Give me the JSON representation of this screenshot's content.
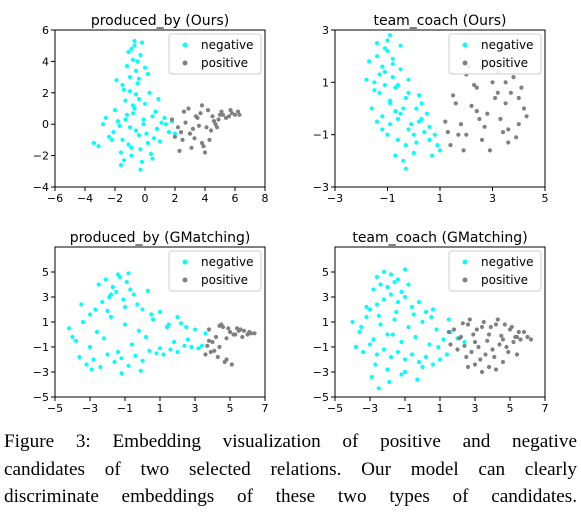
{
  "colors": {
    "negative": "#00ffff",
    "positive": "#808080",
    "axis": "#000000"
  },
  "legend": {
    "negative": "negative",
    "positive": "positive"
  },
  "chart_data": [
    {
      "type": "scatter",
      "title": "produced_by (Ours)",
      "xlim": [
        -6,
        8
      ],
      "ylim": [
        -4,
        6
      ],
      "xticks": [
        "−6",
        "−4",
        "−2",
        "0",
        "2",
        "4",
        "6",
        "8"
      ],
      "yticks": [
        "−4",
        "−2",
        "0",
        "2",
        "4",
        "6"
      ],
      "xtick_values": [
        -6,
        -4,
        -2,
        0,
        2,
        4,
        6,
        8
      ],
      "ytick_values": [
        -4,
        -2,
        0,
        2,
        4,
        6
      ],
      "legend_position": "top-right",
      "series": [
        {
          "name": "negative",
          "color": "#00ffff",
          "x": [
            -2.1,
            -1.8,
            -1.5,
            -1.2,
            -1.0,
            -0.7,
            -0.4,
            -0.1,
            0.2,
            0.5,
            0.8,
            1.1,
            -2.4,
            -2.8,
            -3.1,
            -1.6,
            -0.9,
            -0.3,
            0.4,
            1.0,
            1.6,
            -1.3,
            -0.6,
            0.0,
            0.7,
            -2.0,
            -1.1,
            -0.2,
            0.6,
            1.3,
            -1.7,
            -0.8,
            0.1,
            -1.4,
            -0.5,
            0.3,
            -1.0,
            -0.6,
            -0.4,
            -1.2,
            -0.8,
            -0.3,
            0.0,
            -0.9,
            -1.5,
            -0.2,
            -0.7,
            -1.1,
            0.2,
            -0.5,
            -1.0,
            -0.4,
            -0.8,
            -1.3,
            -0.1,
            -0.6,
            -0.9,
            -1.6,
            0.5,
            -2.2,
            1.4,
            2.0,
            -2.6,
            -3.4,
            1.8,
            -1.9,
            -0.3,
            0.9,
            -1.4,
            -0.7
          ],
          "y": [
            -0.5,
            0.2,
            -1.0,
            0.6,
            -0.2,
            1.0,
            -0.7,
            0.3,
            -1.2,
            0.5,
            -0.3,
            0.1,
            -0.8,
            0.0,
            -1.4,
            -1.8,
            -2.0,
            -1.6,
            -1.9,
            -1.1,
            -0.5,
            1.5,
            1.9,
            1.3,
            0.8,
            0.9,
            -1.3,
            -2.4,
            -0.9,
            0.4,
            -0.1,
            0.7,
            -0.6,
            2.2,
            2.6,
            2.0,
            3.0,
            3.4,
            2.9,
            3.7,
            4.1,
            4.4,
            3.6,
            4.8,
            2.5,
            5.2,
            5.0,
            4.6,
            3.2,
            4.0,
            2.1,
            1.6,
            1.2,
            0.3,
            0.0,
            -0.4,
            -1.5,
            -2.6,
            -2.2,
            -1.0,
            0.0,
            -0.6,
            0.4,
            -1.2,
            0.2,
            2.8,
            -2.9,
            1.6,
            -2.3,
            5.3
          ]
        },
        {
          "name": "positive",
          "color": "#808080",
          "x": [
            1.8,
            2.2,
            2.6,
            3.0,
            3.4,
            3.8,
            4.2,
            4.6,
            5.0,
            5.4,
            5.8,
            6.2,
            2.5,
            3.1,
            3.6,
            4.0,
            4.4,
            4.9,
            2.9,
            3.3,
            3.9,
            4.5,
            2.3,
            2.7,
            3.5,
            4.1,
            4.7,
            5.2,
            5.6,
            6.0,
            2.0,
            3.8,
            4.3,
            3.2,
            2.4,
            5.1,
            5.7,
            3.7,
            4.8,
            6.3
          ],
          "y": [
            0.3,
            -0.2,
            0.8,
            -0.6,
            0.5,
            -1.2,
            0.9,
            0.2,
            0.6,
            0.4,
            0.7,
            0.8,
            -1.0,
            -1.5,
            -0.1,
            -1.8,
            -0.4,
            0.3,
            1.0,
            -0.9,
            -1.4,
            0.5,
            -1.7,
            0.1,
            0.4,
            -0.2,
            0.0,
            0.6,
            0.5,
            0.6,
            -0.8,
            1.2,
            -1.0,
            -0.3,
            -0.5,
            0.8,
            0.9,
            0.7,
            -0.2,
            0.6
          ]
        }
      ]
    },
    {
      "type": "scatter",
      "title": "team_coach (Ours)",
      "xlim": [
        -3,
        5
      ],
      "ylim": [
        -3,
        3
      ],
      "xticks": [
        "−3",
        "−1",
        "1",
        "3",
        "5"
      ],
      "yticks": [
        "−3",
        "−1",
        "1",
        "3"
      ],
      "xtick_values": [
        -3,
        -1,
        1,
        3,
        5
      ],
      "ytick_values": [
        -3,
        -1,
        1,
        3
      ],
      "legend_position": "top-right",
      "series": [
        {
          "name": "negative",
          "color": "#00ffff",
          "x": [
            -1.5,
            -1.3,
            -1.1,
            -0.9,
            -0.7,
            -0.5,
            -0.3,
            -0.1,
            0.1,
            0.3,
            -1.7,
            -1.4,
            -1.2,
            -1.0,
            -0.8,
            -0.6,
            -0.4,
            -0.2,
            0.0,
            0.2,
            0.4,
            0.6,
            0.8,
            1.0,
            -1.6,
            -1.2,
            -0.9,
            -0.6,
            -0.3,
            0.0,
            -1.4,
            -1.1,
            -0.8,
            -0.5,
            -0.2,
            0.2,
            0.5,
            -1.0,
            -0.7,
            -0.4,
            -1.3,
            -0.9,
            -0.6,
            -1.5,
            -1.1,
            -0.8,
            0.1,
            0.6,
            0.9,
            -0.2,
            -1.0,
            -0.5,
            -1.2,
            -0.7,
            0.3,
            -1.8,
            -0.3,
            0.7,
            -1.4,
            -0.9
          ],
          "y": [
            1.0,
            0.6,
            1.4,
            0.2,
            0.8,
            -0.2,
            0.4,
            -0.6,
            0.0,
            -0.4,
            1.8,
            2.0,
            1.6,
            2.2,
            1.2,
            0.9,
            0.0,
            -0.8,
            -1.0,
            -0.5,
            -0.9,
            -1.2,
            -1.0,
            -1.6,
            0.0,
            -0.3,
            -0.6,
            -1.2,
            -1.4,
            -1.7,
            2.5,
            2.3,
            1.9,
            1.5,
            1.1,
            0.5,
            -0.2,
            -1.0,
            -1.8,
            -2.0,
            1.3,
            0.3,
            -0.4,
            0.7,
            0.9,
            1.7,
            -1.3,
            -0.7,
            -1.4,
            0.6,
            2.6,
            2.4,
            -0.8,
            -0.1,
            0.2,
            1.1,
            -2.3,
            -1.8,
            -0.5,
            2.8
          ]
        },
        {
          "name": "positive",
          "color": "#808080",
          "x": [
            1.2,
            1.6,
            2.0,
            2.4,
            2.8,
            3.2,
            3.6,
            4.0,
            4.3,
            1.4,
            1.8,
            2.2,
            2.6,
            3.0,
            3.4,
            3.8,
            4.2,
            1.5,
            2.0,
            2.5,
            3.0,
            3.5,
            4.0,
            1.3,
            1.9,
            2.3,
            2.7,
            3.1,
            3.5,
            3.9,
            2.1,
            2.9,
            3.3,
            3.7,
            2.4,
            2.8,
            3.2,
            1.7,
            4.1,
            3.6
          ],
          "y": [
            -0.5,
            0.2,
            -1.0,
            0.8,
            -0.2,
            0.6,
            -0.8,
            0.4,
            -0.3,
            -1.4,
            -0.6,
            0.1,
            -1.2,
            1.0,
            -0.9,
            1.2,
            0.0,
            0.5,
            1.3,
            -0.4,
            1.6,
            0.2,
            -0.6,
            -0.9,
            -1.6,
            0.9,
            -0.7,
            0.4,
            1.0,
            -1.1,
            1.6,
            -1.6,
            -0.4,
            0.6,
            -0.1,
            1.8,
            1.4,
            -1.0,
            0.8,
            -1.3
          ]
        }
      ]
    },
    {
      "type": "scatter",
      "title": "produced_by (GMatching)",
      "xlim": [
        -5,
        7
      ],
      "ylim": [
        -5,
        7
      ],
      "xticks": [
        "−5",
        "−3",
        "−1",
        "1",
        "3",
        "5",
        "7"
      ],
      "yticks": [
        "−5",
        "−3",
        "−1",
        "1",
        "3",
        "5"
      ],
      "xtick_values": [
        -5,
        -3,
        -1,
        1,
        3,
        5,
        7
      ],
      "ytick_values": [
        -5,
        -3,
        -1,
        1,
        3,
        5
      ],
      "legend_position": "top-right",
      "series": [
        {
          "name": "negative",
          "color": "#00ffff",
          "x": [
            -4.2,
            -3.8,
            -3.4,
            -3.0,
            -2.6,
            -2.2,
            -1.8,
            -1.4,
            -1.0,
            -0.6,
            -0.2,
            0.2,
            0.6,
            1.0,
            1.4,
            1.8,
            2.2,
            2.6,
            3.0,
            3.4,
            -3.6,
            -3.2,
            -2.8,
            -2.4,
            -2.0,
            -1.6,
            -1.2,
            -0.8,
            -0.4,
            0.0,
            0.4,
            0.8,
            1.2,
            1.6,
            2.0,
            2.4,
            2.8,
            3.2,
            -2.7,
            -2.3,
            -1.9,
            -1.5,
            -1.1,
            -0.7,
            -0.3,
            -2.5,
            -2.1,
            -1.7,
            -1.3,
            -0.9,
            -0.5,
            -3.0,
            -2.0,
            -1.0,
            0.0,
            1.0,
            2.0,
            -4.0,
            -3.5,
            -1.4,
            -0.8,
            -1.8,
            0.5,
            1.5,
            2.5,
            3.6,
            -2.9,
            -1.2,
            0.3,
            -0.1
          ],
          "y": [
            0.5,
            -0.5,
            1.0,
            -1.0,
            0.2,
            -0.3,
            1.4,
            -1.4,
            0.8,
            -0.8,
            0.3,
            -0.2,
            1.2,
            -1.1,
            0.6,
            -0.6,
            0.9,
            -0.4,
            0.4,
            -0.9,
            -1.8,
            -2.4,
            -2.0,
            -2.6,
            -1.6,
            -2.2,
            -1.9,
            -2.5,
            -1.7,
            -2.1,
            -1.3,
            -1.5,
            -1.6,
            -1.2,
            -1.4,
            -0.9,
            -1.0,
            -1.1,
            2.0,
            2.6,
            3.0,
            3.4,
            2.8,
            3.6,
            2.4,
            4.0,
            4.4,
            3.8,
            4.6,
            4.2,
            3.2,
            1.6,
            1.9,
            2.2,
            2.0,
            1.8,
            1.4,
            -0.2,
            2.4,
            4.8,
            4.9,
            3.2,
            1.6,
            0.8,
            0.6,
            0.1,
            -2.8,
            -3.1,
            3.5,
            -2.9
          ]
        },
        {
          "name": "positive",
          "color": "#808080",
          "x": [
            3.8,
            4.2,
            4.6,
            5.0,
            5.4,
            5.8,
            6.2,
            4.0,
            4.4,
            4.8,
            5.2,
            5.6,
            6.0,
            3.9,
            4.3,
            4.7,
            5.1,
            3.7,
            4.5,
            4.9,
            5.3,
            5.7,
            6.4,
            4.1,
            3.6,
            4.8,
            5.5,
            6.1,
            4.4,
            3.8
          ],
          "y": [
            0.4,
            -0.2,
            0.6,
            0.2,
            0.5,
            0.3,
            0.1,
            -0.6,
            -1.0,
            -0.3,
            0.0,
            0.4,
            0.0,
            -1.4,
            -1.8,
            -2.2,
            -2.4,
            -0.9,
            0.8,
            0.5,
            0.0,
            -0.2,
            0.1,
            -1.3,
            -1.6,
            -2.0,
            0.3,
            0.2,
            0.7,
            -0.5
          ]
        }
      ]
    },
    {
      "type": "scatter",
      "title": "team_coach (GMatching)",
      "xlim": [
        -5,
        7
      ],
      "ylim": [
        -5,
        7
      ],
      "xticks": [
        "−5",
        "−3",
        "−1",
        "1",
        "3",
        "5",
        "7"
      ],
      "yticks": [
        "−5",
        "−3",
        "−1",
        "1",
        "3",
        "5"
      ],
      "xtick_values": [
        -5,
        -3,
        -1,
        1,
        3,
        5,
        7
      ],
      "ytick_values": [
        -5,
        -3,
        -1,
        1,
        3,
        5
      ],
      "legend_position": "top-right",
      "series": [
        {
          "name": "negative",
          "color": "#00ffff",
          "x": [
            -4.0,
            -3.6,
            -3.2,
            -2.8,
            -2.4,
            -2.0,
            -1.6,
            -1.2,
            -0.8,
            -0.4,
            0.0,
            0.4,
            0.8,
            1.2,
            1.6,
            2.0,
            -3.8,
            -3.4,
            -3.0,
            -2.6,
            -2.2,
            -1.8,
            -1.4,
            -1.0,
            -0.6,
            -0.2,
            0.2,
            0.6,
            1.0,
            1.4,
            -3.0,
            -2.6,
            -2.2,
            -1.8,
            -1.4,
            -1.0,
            -0.6,
            -0.2,
            0.2,
            0.6,
            -2.8,
            -2.4,
            -2.0,
            -1.6,
            -1.2,
            -0.8,
            -2.6,
            -2.2,
            -1.8,
            -1.4,
            -1.0,
            -3.2,
            -2.5,
            -1.5,
            -0.5,
            0.5,
            1.5,
            -2.0,
            -1.0,
            0.0,
            -2.9,
            -1.9,
            -3.5,
            -0.3,
            -1.7,
            -2.7,
            -1.2,
            0.9,
            2.4,
            -2.5
          ],
          "y": [
            1.0,
            0.2,
            1.4,
            -0.4,
            0.8,
            0.0,
            1.2,
            -0.6,
            0.6,
            -0.2,
            1.0,
            -0.8,
            0.4,
            -0.4,
            0.2,
            -0.3,
            -1.0,
            -1.4,
            -0.8,
            -1.6,
            -1.2,
            -1.8,
            -1.4,
            -2.0,
            -1.6,
            -2.2,
            -1.8,
            -2.4,
            -2.0,
            -1.6,
            2.0,
            2.4,
            2.8,
            3.2,
            2.6,
            3.0,
            2.2,
            2.6,
            1.8,
            2.0,
            3.6,
            4.0,
            3.8,
            4.2,
            3.4,
            4.0,
            4.6,
            5.0,
            4.8,
            4.4,
            5.2,
            2.2,
            1.5,
            1.8,
            1.6,
            1.4,
            1.2,
            -2.8,
            -3.0,
            -2.6,
            -3.4,
            -3.8,
            0.6,
            -3.6,
            0.0,
            -2.4,
            -3.2,
            -1.0,
            -0.6,
            -4.3
          ]
        },
        {
          "name": "positive",
          "color": "#808080",
          "x": [
            1.8,
            2.2,
            2.6,
            3.0,
            3.4,
            3.8,
            4.2,
            4.6,
            5.0,
            5.4,
            5.8,
            1.6,
            2.0,
            2.4,
            2.8,
            3.2,
            3.6,
            4.0,
            4.4,
            4.8,
            5.2,
            5.6,
            2.3,
            2.7,
            3.1,
            3.5,
            3.9,
            4.3,
            4.7,
            5.1,
            5.5,
            6.0,
            2.5,
            3.3,
            4.1,
            4.9,
            3.0,
            3.8,
            4.6,
            5.4,
            2.1,
            2.9,
            3.7,
            4.5,
            5.3,
            6.2,
            1.5,
            3.4,
            4.2,
            2.6
          ],
          "y": [
            0.4,
            -0.2,
            0.8,
            -0.6,
            0.6,
            0.0,
            0.8,
            -0.4,
            0.4,
            -0.2,
            0.2,
            -0.8,
            -1.2,
            -0.9,
            -1.4,
            -1.0,
            -1.6,
            -1.2,
            -0.8,
            -1.0,
            -0.6,
            -0.4,
            0.9,
            1.2,
            0.4,
            1.0,
            0.6,
            1.2,
            0.8,
            0.6,
            0.2,
            -0.2,
            -1.8,
            -2.0,
            -1.8,
            -1.4,
            -2.4,
            -2.6,
            -2.2,
            -1.6,
            -0.3,
            0.0,
            -0.5,
            -0.1,
            -0.2,
            -0.4,
            0.2,
            -3.0,
            -2.8,
            -2.6
          ]
        }
      ]
    }
  ],
  "caption": {
    "line1": "Figure 3: Embedding visualization of positive and negative",
    "line2": "candidates of two selected relations. Our model can clearly",
    "line3": "discriminate embeddings of these two types of candidates."
  }
}
